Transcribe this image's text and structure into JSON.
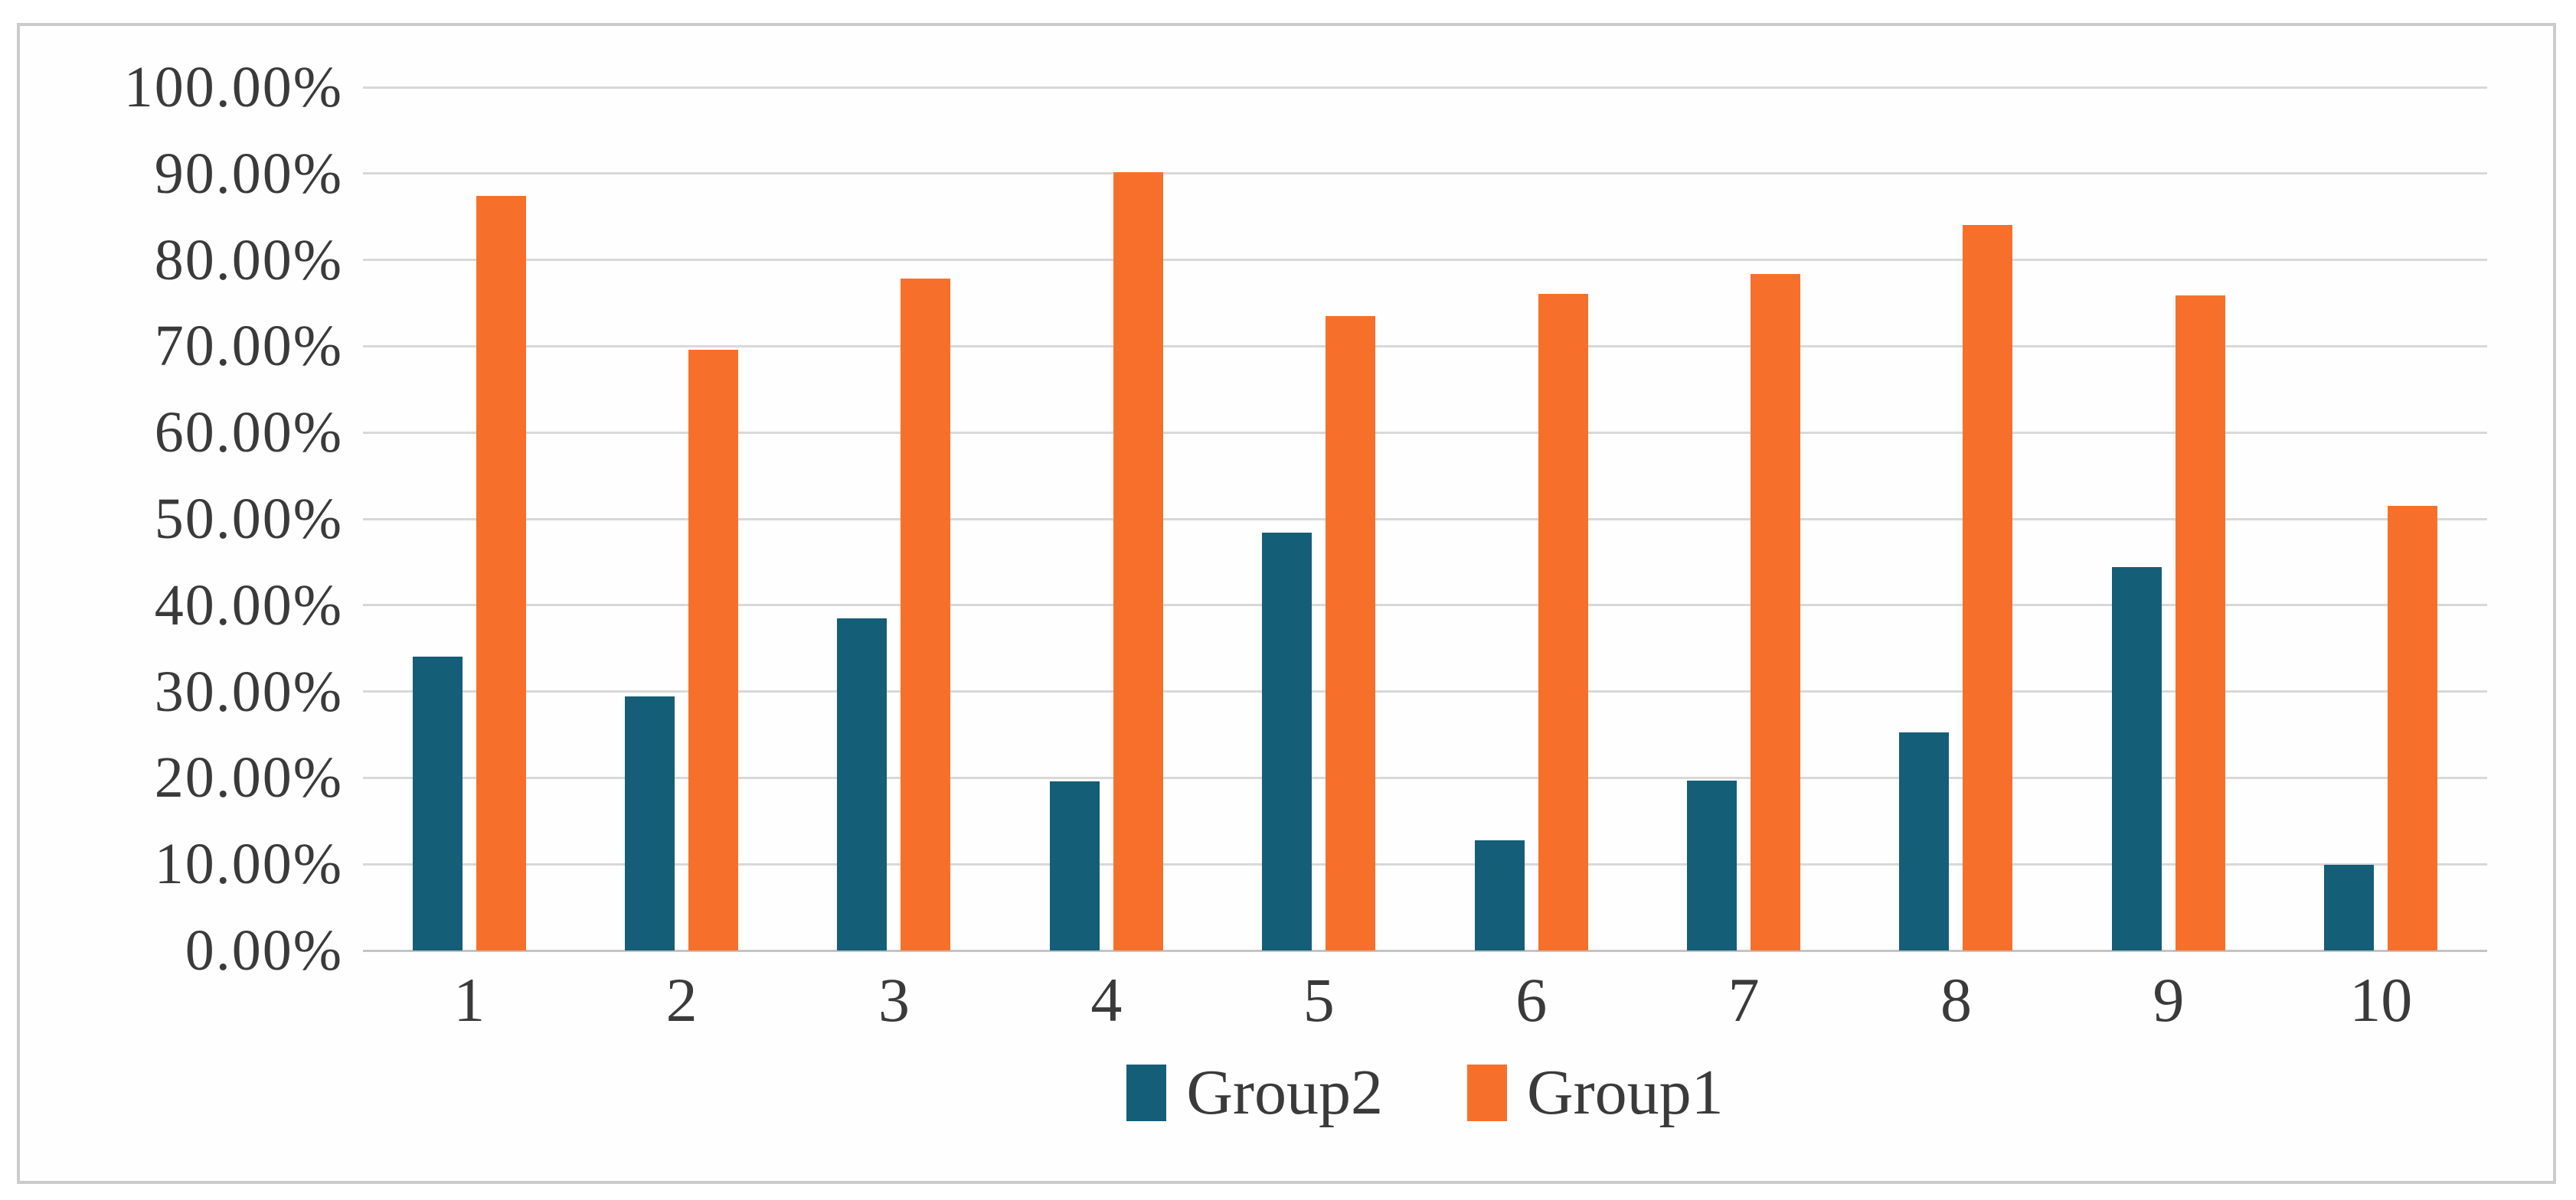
{
  "chart_data": {
    "type": "bar",
    "title": "",
    "categories": [
      "1",
      "2",
      "3",
      "4",
      "5",
      "6",
      "7",
      "8",
      "9",
      "10"
    ],
    "series": [
      {
        "name": "Group2",
        "color": "#155E78",
        "values": [
          34.0,
          29.4,
          38.5,
          19.6,
          48.4,
          12.8,
          19.7,
          25.3,
          44.4,
          9.9
        ]
      },
      {
        "name": "Group1",
        "color": "#F7702B",
        "values": [
          87.4,
          69.6,
          77.8,
          90.2,
          73.5,
          76.1,
          78.4,
          84.0,
          75.9,
          51.5
        ]
      }
    ],
    "y_ticks": [
      "0.00%",
      "10.00%",
      "20.00%",
      "30.00%",
      "40.00%",
      "50.00%",
      "60.00%",
      "70.00%",
      "80.00%",
      "90.00%",
      "100.00%"
    ],
    "ylim": [
      0,
      100
    ],
    "y_step": 10,
    "grid": true,
    "legend_position": "bottom",
    "xlabel": "",
    "ylabel": "",
    "colors": {
      "gridline": "#D8D8D8",
      "axis_line": "#C4C4C4",
      "text": "#3A3A3A",
      "frame_border": "#CBCBCB",
      "background": "#FFFFFF"
    }
  }
}
